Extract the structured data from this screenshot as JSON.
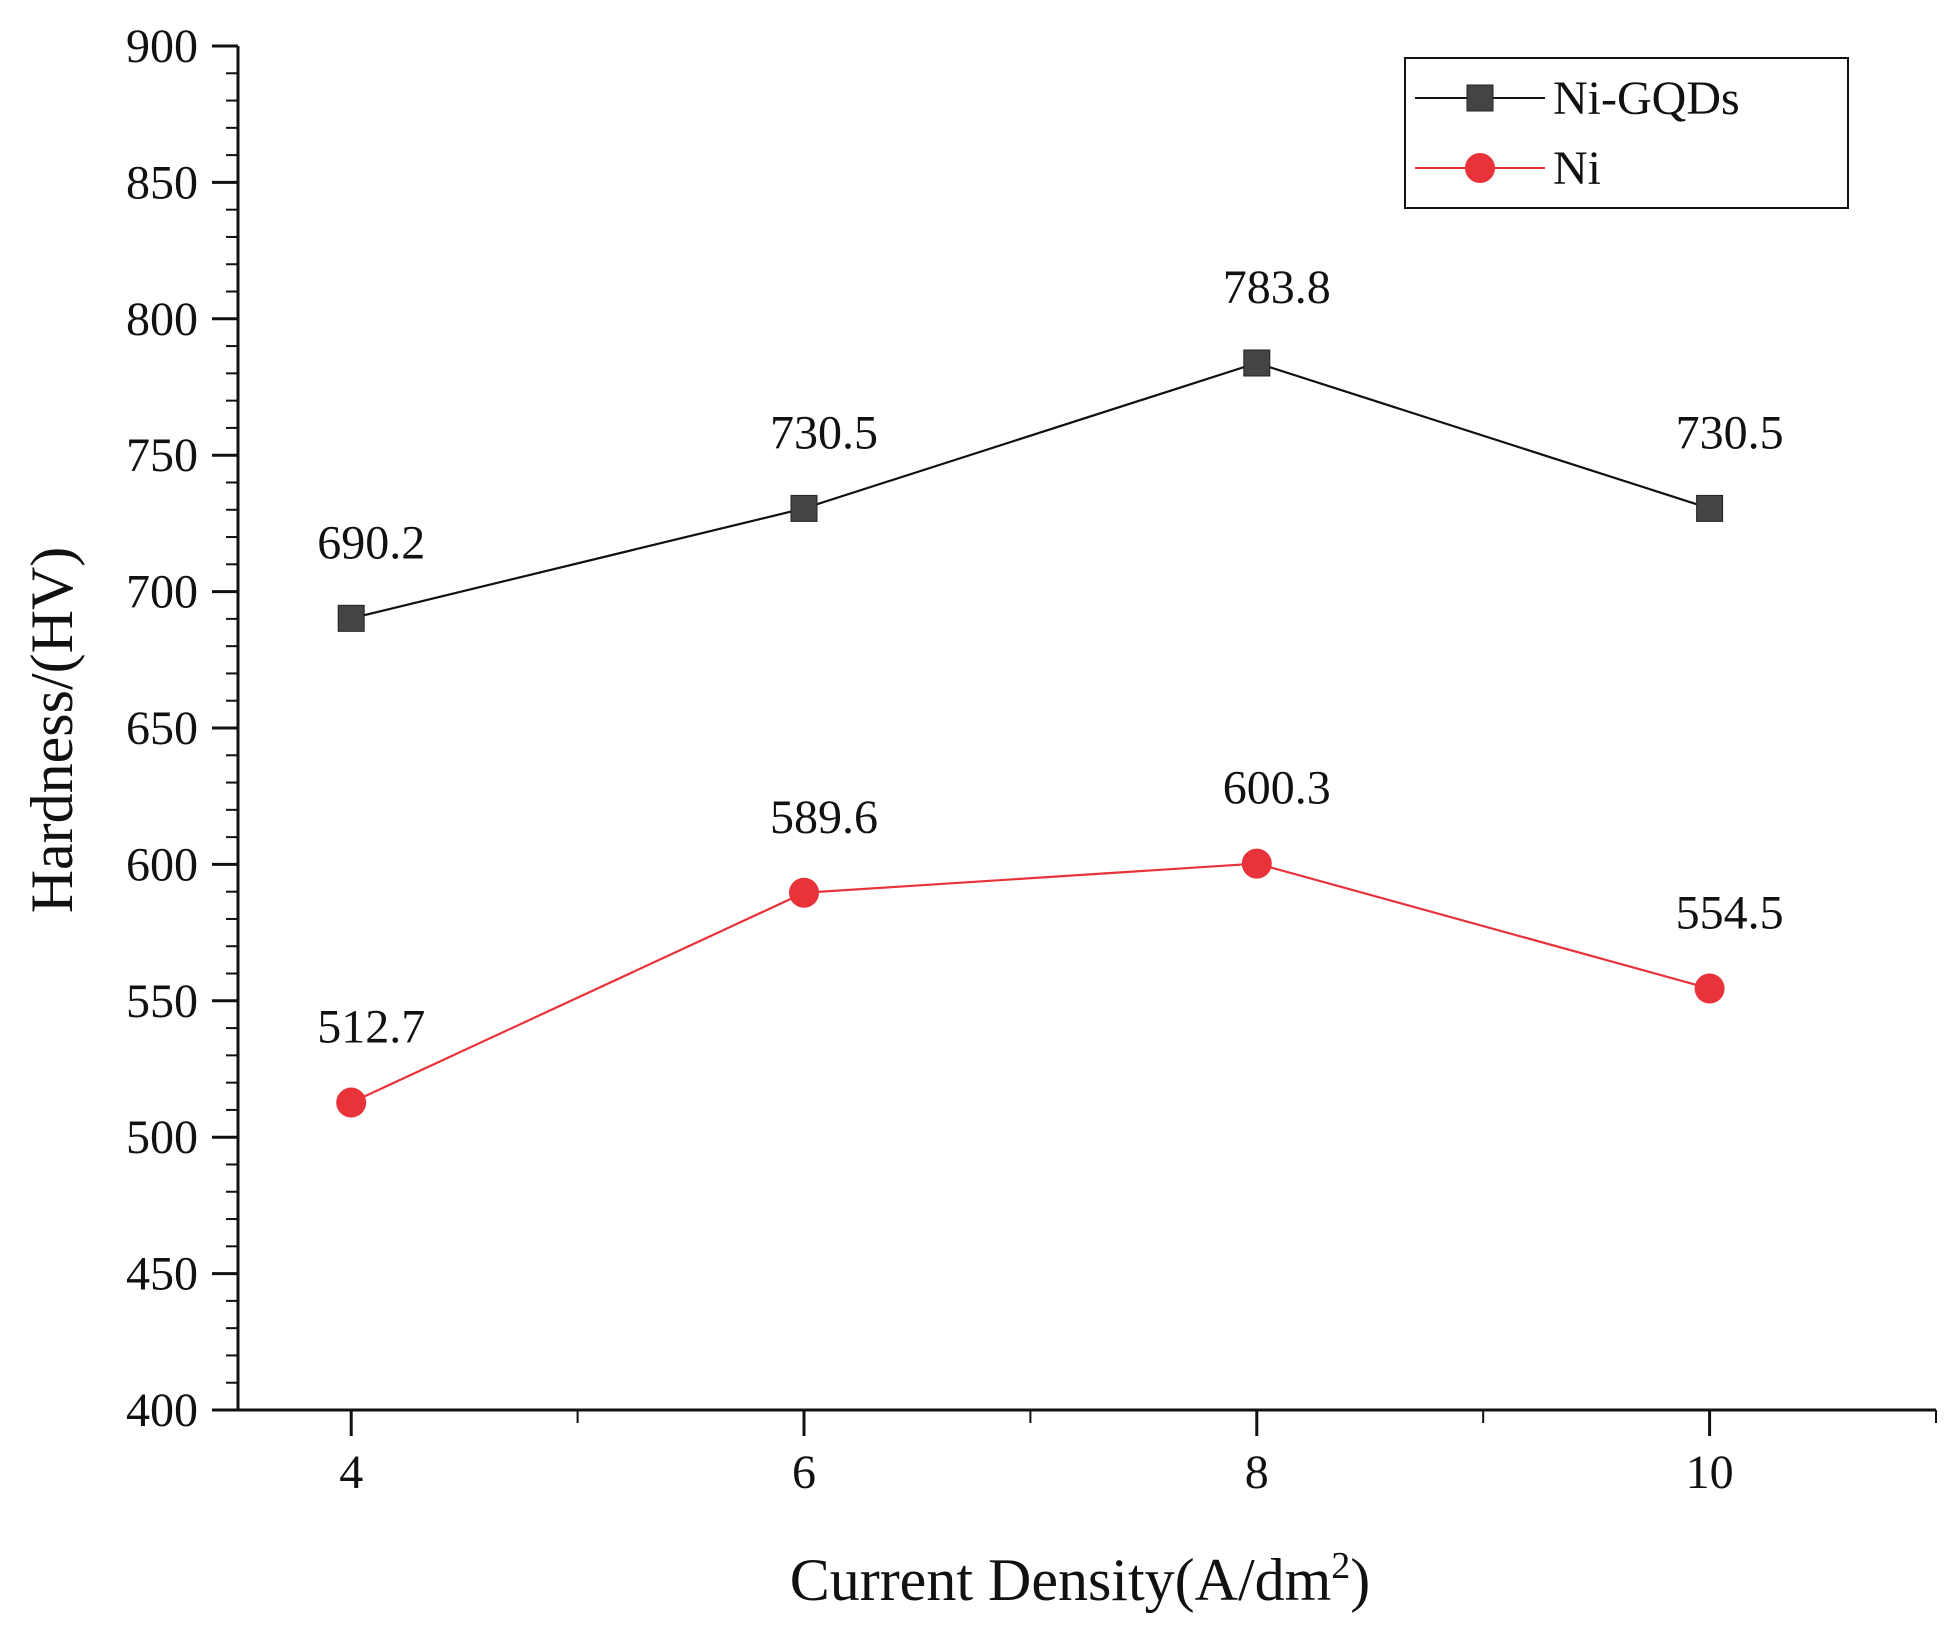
{
  "chart_data": {
    "type": "line",
    "xlabel_main": "Current Density(A/dm",
    "xlabel_sup": "2",
    "xlabel_end": ")",
    "ylabel": "Hardness/(HV)",
    "x": [
      4,
      6,
      8,
      10
    ],
    "xticks": [
      "4",
      "6",
      "8",
      "10"
    ],
    "xlim": [
      3.5,
      11.0
    ],
    "ylim": [
      400,
      900
    ],
    "yticks": [
      400,
      450,
      500,
      550,
      600,
      650,
      700,
      750,
      800,
      850,
      900
    ],
    "grid": false,
    "legend_position": "top-right",
    "series": [
      {
        "name": "Ni-GQDs",
        "values": [
          690.2,
          730.5,
          783.8,
          730.5
        ],
        "labels": [
          "690.2",
          "730.5",
          "783.8",
          "730.5"
        ],
        "color": "#444444",
        "line_color": "#111111",
        "marker": "square"
      },
      {
        "name": "Ni",
        "values": [
          512.7,
          589.6,
          600.3,
          554.5
        ],
        "labels": [
          "512.7",
          "589.6",
          "600.3",
          "554.5"
        ],
        "color": "#e8333a",
        "line_color": "#e8333a",
        "marker": "circle"
      }
    ]
  }
}
